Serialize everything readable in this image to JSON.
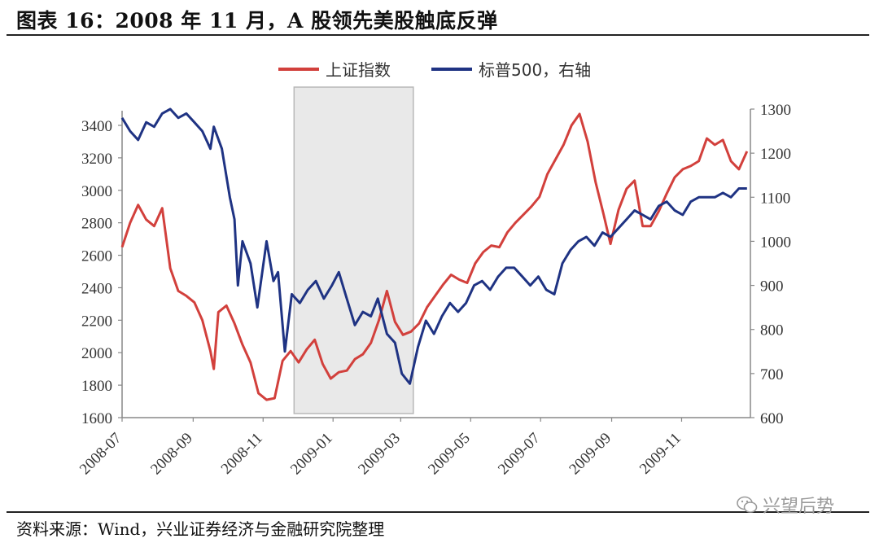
{
  "header": {
    "title": "图表 16：2008 年 11 月，A 股领先美股触底反弹"
  },
  "footer": {
    "source": "资料来源：Wind，兴业证券经济与金融研究院整理"
  },
  "watermark": {
    "text": "兴望后势",
    "icon": "wechat-icon"
  },
  "colors": {
    "sse": "#d2403c",
    "spx": "#1f3383",
    "highlight": "#e9e9e9",
    "axis": "#888888"
  },
  "chart_data": {
    "type": "line",
    "title": "",
    "legend": {
      "position": "top-center",
      "entries": [
        "上证指数",
        "标普500，右轴"
      ]
    },
    "x_ticks": [
      "2008-07",
      "2008-09",
      "2008-11",
      "2009-01",
      "2009-03",
      "2009-05",
      "2009-07",
      "2009-09",
      "2009-11"
    ],
    "x_range": [
      "2008-07-01",
      "2009-12-31"
    ],
    "y_left": {
      "label": "",
      "range": [
        1600,
        3400
      ],
      "ticks": [
        1600,
        1800,
        2000,
        2200,
        2400,
        2600,
        2800,
        3000,
        3200,
        3400
      ]
    },
    "y_right": {
      "label": "",
      "range": [
        600,
        1300
      ],
      "ticks": [
        600,
        700,
        800,
        900,
        1000,
        1100,
        1200,
        1300
      ]
    },
    "highlight": {
      "start": "2008-11-28",
      "end": "2009-03-12"
    },
    "series": [
      {
        "name": "上证指数",
        "axis": "left",
        "points": [
          [
            "2008-07-01",
            2650
          ],
          [
            "2008-07-08",
            2800
          ],
          [
            "2008-07-15",
            2910
          ],
          [
            "2008-07-22",
            2820
          ],
          [
            "2008-07-29",
            2780
          ],
          [
            "2008-08-05",
            2890
          ],
          [
            "2008-08-12",
            2520
          ],
          [
            "2008-08-19",
            2380
          ],
          [
            "2008-08-26",
            2350
          ],
          [
            "2008-09-02",
            2310
          ],
          [
            "2008-09-09",
            2200
          ],
          [
            "2008-09-16",
            2010
          ],
          [
            "2008-09-19",
            1900
          ],
          [
            "2008-09-23",
            2250
          ],
          [
            "2008-09-30",
            2290
          ],
          [
            "2008-10-07",
            2180
          ],
          [
            "2008-10-14",
            2050
          ],
          [
            "2008-10-21",
            1940
          ],
          [
            "2008-10-28",
            1750
          ],
          [
            "2008-11-04",
            1710
          ],
          [
            "2008-11-11",
            1720
          ],
          [
            "2008-11-18",
            1950
          ],
          [
            "2008-11-25",
            2010
          ],
          [
            "2008-12-02",
            1940
          ],
          [
            "2008-12-09",
            2020
          ],
          [
            "2008-12-16",
            2080
          ],
          [
            "2008-12-23",
            1930
          ],
          [
            "2008-12-30",
            1840
          ],
          [
            "2009-01-06",
            1880
          ],
          [
            "2009-01-13",
            1890
          ],
          [
            "2009-01-20",
            1960
          ],
          [
            "2009-01-27",
            1990
          ],
          [
            "2009-02-03",
            2060
          ],
          [
            "2009-02-10",
            2200
          ],
          [
            "2009-02-17",
            2380
          ],
          [
            "2009-02-24",
            2190
          ],
          [
            "2009-03-03",
            2110
          ],
          [
            "2009-03-10",
            2130
          ],
          [
            "2009-03-17",
            2180
          ],
          [
            "2009-03-24",
            2280
          ],
          [
            "2009-03-31",
            2350
          ],
          [
            "2009-04-07",
            2420
          ],
          [
            "2009-04-14",
            2480
          ],
          [
            "2009-04-21",
            2450
          ],
          [
            "2009-04-28",
            2430
          ],
          [
            "2009-05-05",
            2550
          ],
          [
            "2009-05-12",
            2620
          ],
          [
            "2009-05-19",
            2660
          ],
          [
            "2009-05-26",
            2650
          ],
          [
            "2009-06-02",
            2740
          ],
          [
            "2009-06-09",
            2800
          ],
          [
            "2009-06-16",
            2850
          ],
          [
            "2009-06-23",
            2900
          ],
          [
            "2009-06-30",
            2960
          ],
          [
            "2009-07-07",
            3100
          ],
          [
            "2009-07-14",
            3190
          ],
          [
            "2009-07-21",
            3280
          ],
          [
            "2009-07-28",
            3400
          ],
          [
            "2009-08-04",
            3470
          ],
          [
            "2009-08-11",
            3300
          ],
          [
            "2009-08-18",
            3050
          ],
          [
            "2009-08-25",
            2850
          ],
          [
            "2009-08-31",
            2670
          ],
          [
            "2009-09-07",
            2880
          ],
          [
            "2009-09-14",
            3010
          ],
          [
            "2009-09-21",
            3060
          ],
          [
            "2009-09-28",
            2780
          ],
          [
            "2009-10-05",
            2780
          ],
          [
            "2009-10-12",
            2870
          ],
          [
            "2009-10-19",
            2980
          ],
          [
            "2009-10-26",
            3080
          ],
          [
            "2009-11-02",
            3130
          ],
          [
            "2009-11-09",
            3150
          ],
          [
            "2009-11-16",
            3180
          ],
          [
            "2009-11-23",
            3320
          ],
          [
            "2009-11-30",
            3280
          ],
          [
            "2009-12-07",
            3310
          ],
          [
            "2009-12-14",
            3180
          ],
          [
            "2009-12-21",
            3130
          ],
          [
            "2009-12-28",
            3240
          ]
        ]
      },
      {
        "name": "标普500，右轴",
        "axis": "right",
        "points": [
          [
            "2008-07-01",
            1280
          ],
          [
            "2008-07-08",
            1250
          ],
          [
            "2008-07-15",
            1230
          ],
          [
            "2008-07-22",
            1270
          ],
          [
            "2008-07-29",
            1260
          ],
          [
            "2008-08-05",
            1290
          ],
          [
            "2008-08-12",
            1300
          ],
          [
            "2008-08-19",
            1280
          ],
          [
            "2008-08-26",
            1290
          ],
          [
            "2008-09-02",
            1270
          ],
          [
            "2008-09-09",
            1250
          ],
          [
            "2008-09-16",
            1210
          ],
          [
            "2008-09-19",
            1260
          ],
          [
            "2008-09-26",
            1210
          ],
          [
            "2008-10-03",
            1100
          ],
          [
            "2008-10-07",
            1050
          ],
          [
            "2008-10-10",
            900
          ],
          [
            "2008-10-14",
            1000
          ],
          [
            "2008-10-21",
            950
          ],
          [
            "2008-10-27",
            850
          ],
          [
            "2008-11-04",
            1000
          ],
          [
            "2008-11-10",
            910
          ],
          [
            "2008-11-14",
            930
          ],
          [
            "2008-11-20",
            750
          ],
          [
            "2008-11-26",
            880
          ],
          [
            "2008-12-03",
            860
          ],
          [
            "2008-12-10",
            890
          ],
          [
            "2008-12-17",
            910
          ],
          [
            "2008-12-24",
            870
          ],
          [
            "2008-12-31",
            900
          ],
          [
            "2009-01-06",
            930
          ],
          [
            "2009-01-13",
            870
          ],
          [
            "2009-01-20",
            810
          ],
          [
            "2009-01-27",
            840
          ],
          [
            "2009-02-03",
            830
          ],
          [
            "2009-02-09",
            870
          ],
          [
            "2009-02-17",
            790
          ],
          [
            "2009-02-24",
            770
          ],
          [
            "2009-03-02",
            700
          ],
          [
            "2009-03-09",
            677
          ],
          [
            "2009-03-16",
            760
          ],
          [
            "2009-03-23",
            820
          ],
          [
            "2009-03-30",
            790
          ],
          [
            "2009-04-06",
            830
          ],
          [
            "2009-04-13",
            860
          ],
          [
            "2009-04-20",
            840
          ],
          [
            "2009-04-27",
            860
          ],
          [
            "2009-05-04",
            900
          ],
          [
            "2009-05-11",
            910
          ],
          [
            "2009-05-18",
            890
          ],
          [
            "2009-05-25",
            920
          ],
          [
            "2009-06-01",
            940
          ],
          [
            "2009-06-08",
            940
          ],
          [
            "2009-06-15",
            920
          ],
          [
            "2009-06-22",
            900
          ],
          [
            "2009-06-29",
            920
          ],
          [
            "2009-07-06",
            890
          ],
          [
            "2009-07-13",
            880
          ],
          [
            "2009-07-20",
            950
          ],
          [
            "2009-07-27",
            980
          ],
          [
            "2009-08-03",
            1000
          ],
          [
            "2009-08-10",
            1010
          ],
          [
            "2009-08-17",
            990
          ],
          [
            "2009-08-24",
            1020
          ],
          [
            "2009-08-31",
            1010
          ],
          [
            "2009-09-07",
            1030
          ],
          [
            "2009-09-14",
            1050
          ],
          [
            "2009-09-21",
            1070
          ],
          [
            "2009-09-28",
            1060
          ],
          [
            "2009-10-05",
            1050
          ],
          [
            "2009-10-12",
            1080
          ],
          [
            "2009-10-19",
            1090
          ],
          [
            "2009-10-26",
            1070
          ],
          [
            "2009-11-02",
            1060
          ],
          [
            "2009-11-09",
            1090
          ],
          [
            "2009-11-16",
            1100
          ],
          [
            "2009-11-23",
            1100
          ],
          [
            "2009-11-30",
            1100
          ],
          [
            "2009-12-07",
            1110
          ],
          [
            "2009-12-14",
            1100
          ],
          [
            "2009-12-21",
            1120
          ],
          [
            "2009-12-28",
            1120
          ]
        ]
      }
    ]
  }
}
